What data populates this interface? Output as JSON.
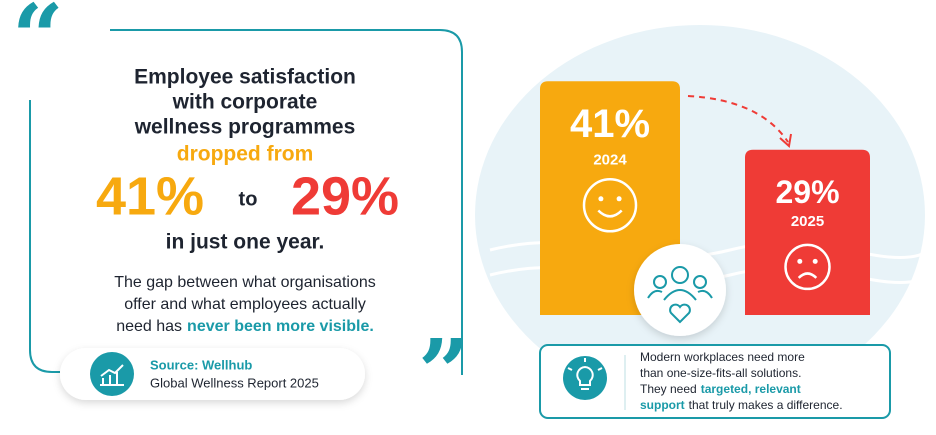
{
  "headline": {
    "lines": [
      "Employee satisfaction",
      "with corporate",
      "wellness programmes"
    ],
    "emphasis": "dropped from",
    "from": "41%",
    "connector": "to",
    "to": "29%",
    "closing": "in just one year."
  },
  "body": {
    "line1": "The gap between what organisations",
    "line2": "offer and what employees actually",
    "line3": "need has",
    "highlight": "never been more visible."
  },
  "source": {
    "label": "Source: Wellhub",
    "report": "Global Wellness Report 2025"
  },
  "callout": {
    "line1": "Modern workplaces need more",
    "line2": "than one-size-fits-all solutions.",
    "line3": "They need",
    "highlight1": "targeted, relevant",
    "highlight2": "support",
    "line4": "that truly makes a difference."
  },
  "chart_data": {
    "type": "bar",
    "categories": [
      "2024",
      "2025"
    ],
    "values": [
      41,
      29
    ],
    "value_labels": [
      "41%",
      "29%"
    ],
    "colors": [
      "#f7a90f",
      "#ef3b36"
    ]
  }
}
